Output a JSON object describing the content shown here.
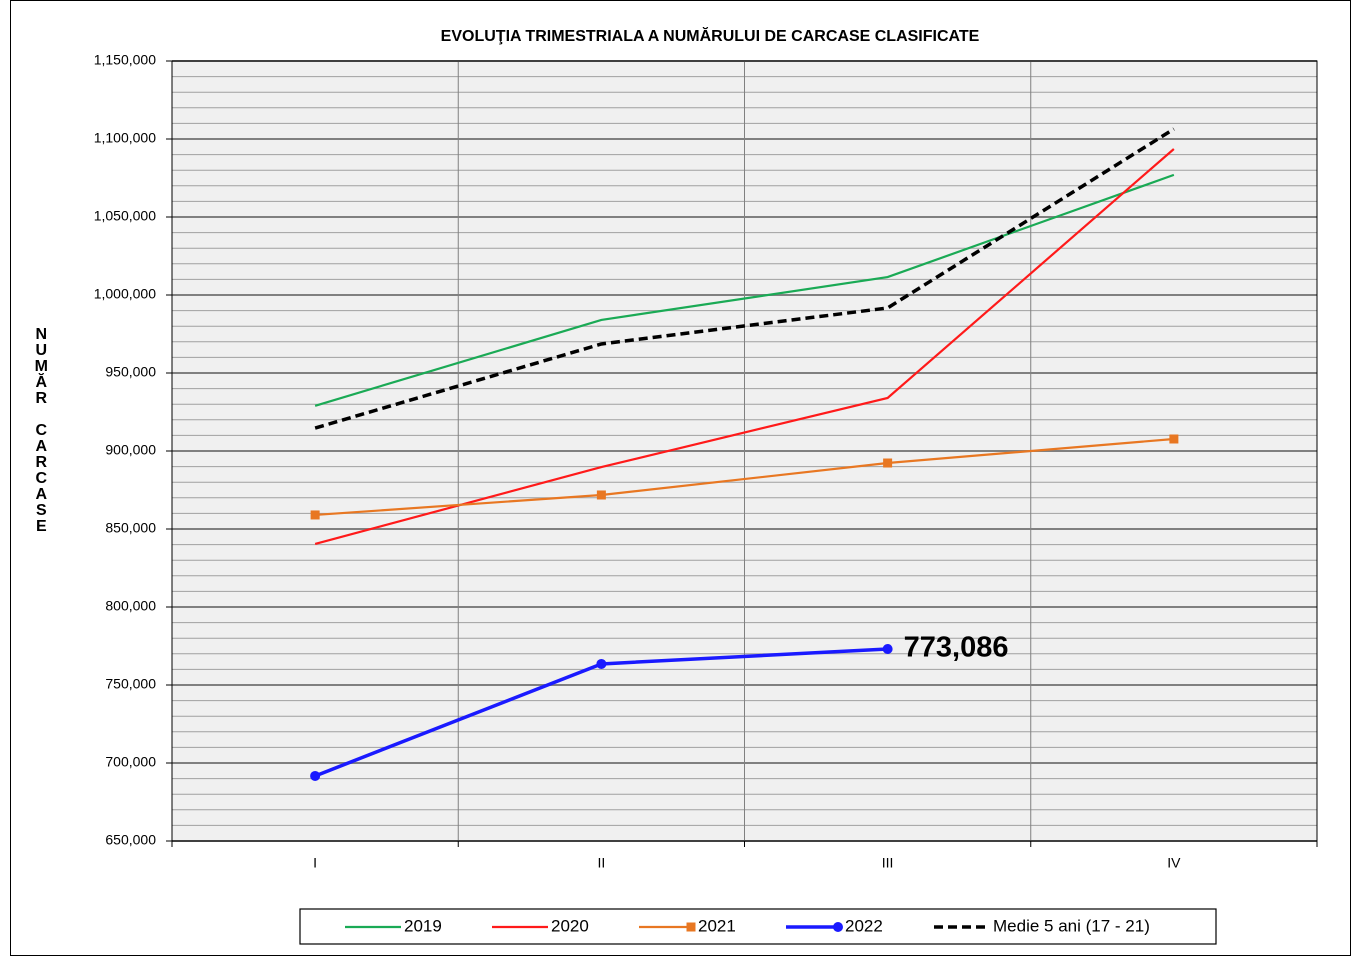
{
  "chart_data": {
    "type": "line",
    "title": "EVOLUŢIA  TRIMESTRIALA  A NUMĂRULUI DE CARCASE  CLASIFICATE",
    "y_label": "NUMĂR CARCASE",
    "categories": [
      "I",
      "II",
      "III",
      "IV"
    ],
    "series": [
      {
        "name": "2019",
        "color": "#1aaa55",
        "values": [
          929000,
          984000,
          1011500,
          1077000
        ]
      },
      {
        "name": "2020",
        "color": "#ff1a1a",
        "values": [
          840400,
          889700,
          934000,
          1093600
        ]
      },
      {
        "name": "2021",
        "color": "#e87722",
        "marker": "square",
        "values": [
          859000,
          871800,
          892300,
          907700
        ]
      },
      {
        "name": "2022",
        "color": "#1a1aff",
        "marker": "circle",
        "values": [
          691700,
          763500,
          773086,
          null
        ],
        "value_labels": [
          null,
          null,
          "773,086",
          null
        ]
      },
      {
        "name": "Medie 5 ani (17 - 21)",
        "color": "#000000",
        "dashed": true,
        "values": [
          914700,
          968600,
          991700,
          1106400
        ]
      }
    ],
    "ylim": [
      650000,
      1150000
    ],
    "yticks": [
      {
        "value": 650000,
        "label": "650,000"
      },
      {
        "value": 700000,
        "label": "700,000"
      },
      {
        "value": 750000,
        "label": "750,000"
      },
      {
        "value": 800000,
        "label": "800,000"
      },
      {
        "value": 850000,
        "label": "850,000"
      },
      {
        "value": 900000,
        "label": "900,000"
      },
      {
        "value": 950000,
        "label": "950,000"
      },
      {
        "value": 1000000,
        "label": "1,000,000"
      },
      {
        "value": 1050000,
        "label": "1,050,000"
      },
      {
        "value": 1100000,
        "label": "1,100,000"
      },
      {
        "value": 1150000,
        "label": "1,150,000"
      }
    ],
    "grid": true,
    "legend": "bottom"
  }
}
